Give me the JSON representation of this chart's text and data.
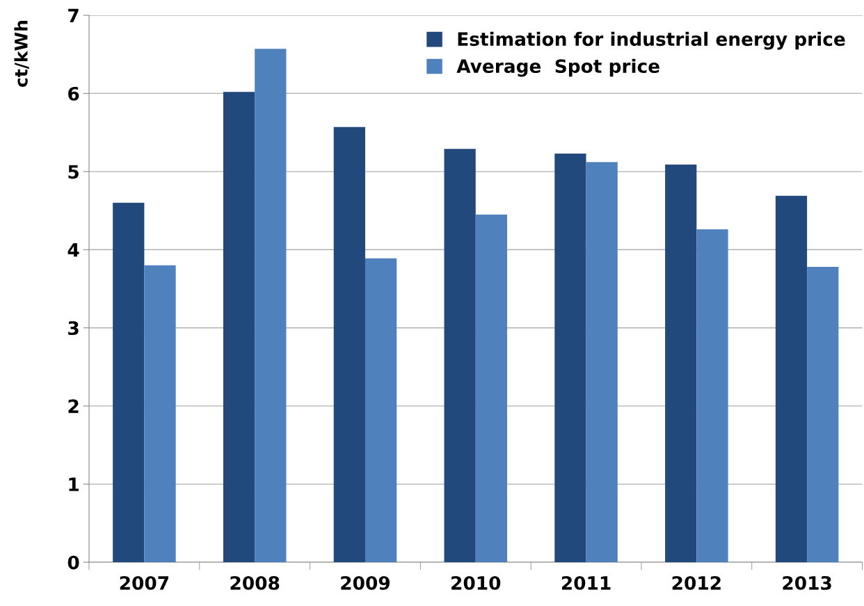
{
  "chart_data": {
    "type": "bar",
    "ylabel": "ct/kWh",
    "categories": [
      "2007",
      "2008",
      "2009",
      "2010",
      "2011",
      "2012",
      "2013"
    ],
    "series": [
      {
        "name": "Estimation for industrial energy price",
        "color": "#21497c",
        "values": [
          4.6,
          6.02,
          5.57,
          5.29,
          5.23,
          5.09,
          4.69
        ]
      },
      {
        "name": "Average  Spot price",
        "color": "#4f81bd",
        "values": [
          3.8,
          6.57,
          3.89,
          4.45,
          5.12,
          4.26,
          3.78
        ]
      }
    ],
    "ylim": [
      0,
      7
    ],
    "yticks": [
      0,
      1,
      2,
      3,
      4,
      5,
      6,
      7
    ],
    "grid": "y",
    "legend": "top right"
  }
}
